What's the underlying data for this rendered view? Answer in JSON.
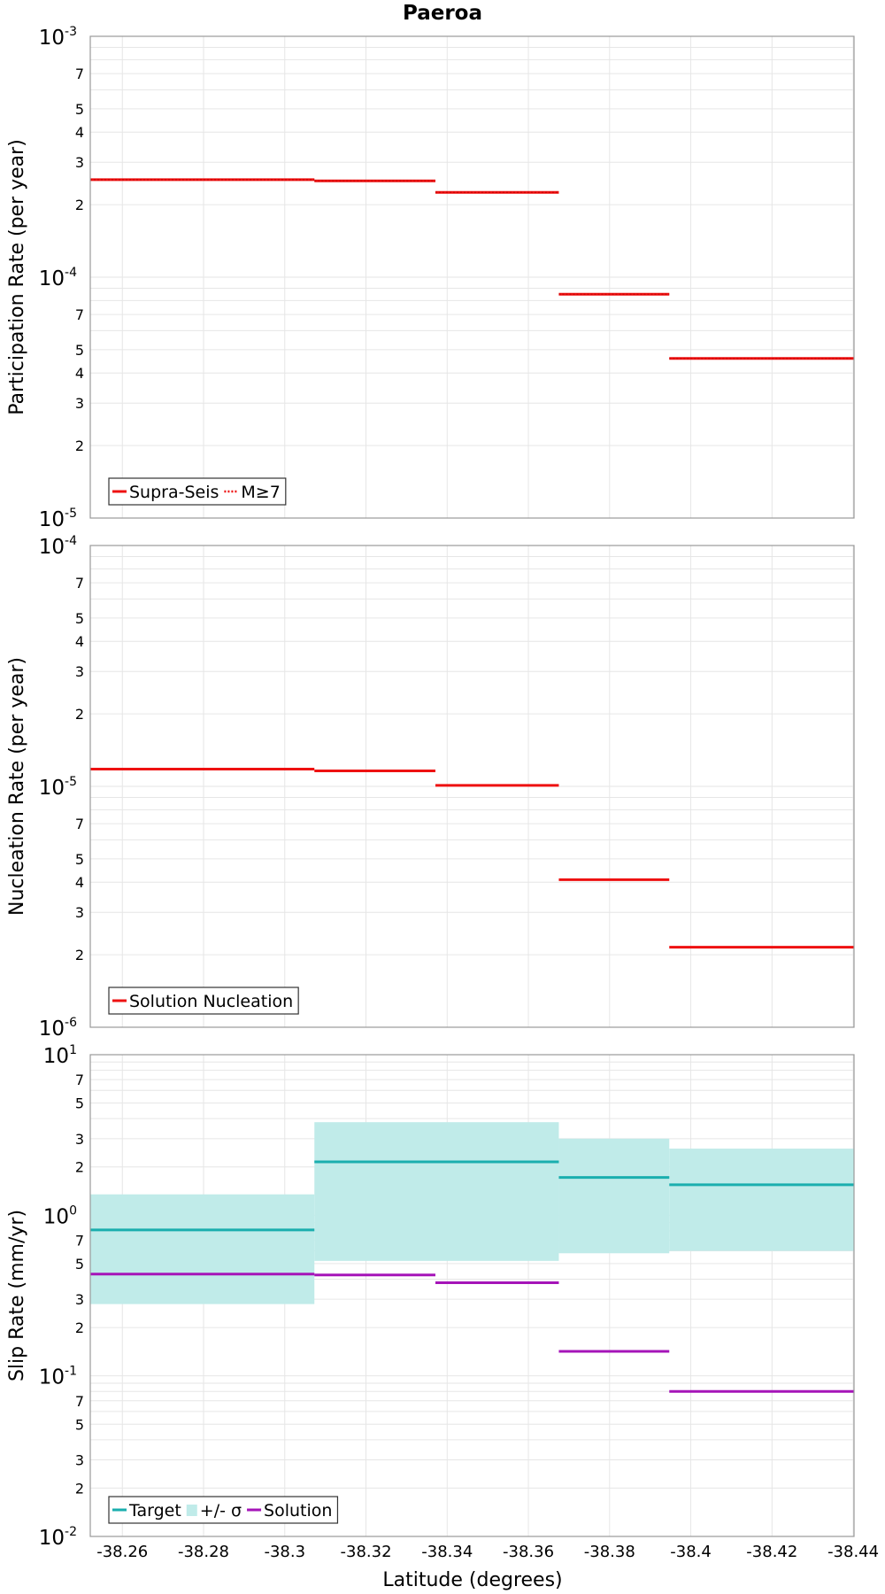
{
  "chart_data": {
    "type": "line",
    "title": "Paeroa",
    "xlabel": "Latitude (degrees)",
    "x_ticks": [
      "-38.26",
      "-38.28",
      "-38.3",
      "-38.32",
      "-38.34",
      "-38.36",
      "-38.38",
      "-38.4",
      "-38.42",
      "-38.44"
    ],
    "x_tick_values": [
      -38.26,
      -38.28,
      -38.3,
      -38.32,
      -38.34,
      -38.36,
      -38.38,
      -38.4,
      -38.42,
      -38.44
    ],
    "xlim": [
      -38.2521,
      -38.4402
    ],
    "x_axis_direction": "decreasing",
    "log_scale_y": true,
    "grid": true,
    "panels": [
      {
        "ylabel": "Participation Rate (per year)",
        "ylim": [
          1e-05,
          0.001
        ],
        "decade_labels": [
          {
            "base": "10",
            "exp": "-5"
          },
          {
            "base": "10",
            "exp": "-4"
          },
          {
            "base": "10",
            "exp": "-3"
          }
        ],
        "minor_labels": [
          "2",
          "3",
          "4",
          "5",
          "7"
        ],
        "legend": {
          "position": "bottom-left",
          "entries": [
            {
              "label": "Supra-Seis",
              "style": "solid",
              "color": "#ee1111"
            },
            {
              "label": "M≥7",
              "style": "dotted",
              "color": "#ee1111"
            }
          ]
        },
        "series": [
          {
            "name": "Supra-Seis",
            "color": "#ee1111",
            "style": "solid",
            "segments": [
              {
                "x": [
                  -38.2521,
                  -38.3073
                ],
                "y": 0.000254
              },
              {
                "x": [
                  -38.3073,
                  -38.3371
                ],
                "y": 0.000251
              },
              {
                "x": [
                  -38.3371,
                  -38.3675
                ],
                "y": 0.000225
              },
              {
                "x": [
                  -38.3675,
                  -38.3947
                ],
                "y": 8.5e-05
              },
              {
                "x": [
                  -38.3947,
                  -38.4402
                ],
                "y": 4.6e-05
              }
            ]
          },
          {
            "name": "M≥7",
            "color": "#ee1111",
            "style": "dotted",
            "segments": [
              {
                "x": [
                  -38.2521,
                  -38.3073
                ],
                "y": 0.000254
              },
              {
                "x": [
                  -38.3073,
                  -38.3371
                ],
                "y": 0.000251
              },
              {
                "x": [
                  -38.3371,
                  -38.3675
                ],
                "y": 0.000225
              },
              {
                "x": [
                  -38.3675,
                  -38.3947
                ],
                "y": 8.5e-05
              },
              {
                "x": [
                  -38.3947,
                  -38.4402
                ],
                "y": 4.6e-05
              }
            ]
          }
        ]
      },
      {
        "ylabel": "Nucleation Rate (per year)",
        "ylim": [
          1e-06,
          0.0001
        ],
        "decade_labels": [
          {
            "base": "10",
            "exp": "-6"
          },
          {
            "base": "10",
            "exp": "-5"
          },
          {
            "base": "10",
            "exp": "-4"
          }
        ],
        "minor_labels": [
          "2",
          "3",
          "4",
          "5",
          "7"
        ],
        "legend": {
          "position": "bottom-left",
          "entries": [
            {
              "label": "Solution Nucleation",
              "style": "solid",
              "color": "#ee1111"
            }
          ]
        },
        "series": [
          {
            "name": "Solution Nucleation",
            "color": "#ee1111",
            "style": "solid",
            "segments": [
              {
                "x": [
                  -38.2521,
                  -38.3073
                ],
                "y": 1.18e-05
              },
              {
                "x": [
                  -38.3073,
                  -38.3371
                ],
                "y": 1.16e-05
              },
              {
                "x": [
                  -38.3371,
                  -38.3675
                ],
                "y": 1.01e-05
              },
              {
                "x": [
                  -38.3675,
                  -38.3947
                ],
                "y": 4.1e-06
              },
              {
                "x": [
                  -38.3947,
                  -38.4402
                ],
                "y": 2.15e-06
              }
            ]
          }
        ]
      },
      {
        "ylabel": "Slip Rate (mm/yr)",
        "ylim": [
          0.01,
          10
        ],
        "decade_labels": [
          {
            "base": "10",
            "exp": "-2"
          },
          {
            "base": "10",
            "exp": "-1"
          },
          {
            "base": "10",
            "exp": "0"
          },
          {
            "base": "10",
            "exp": "1"
          }
        ],
        "minor_labels": [
          "2",
          "3",
          "5",
          "7"
        ],
        "legend": {
          "position": "bottom-left",
          "entries": [
            {
              "label": "Target",
              "style": "solid",
              "color": "#1aaeae"
            },
            {
              "label": "+/- σ",
              "style": "box",
              "color": "#c0ebe9"
            },
            {
              "label": "Solution",
              "style": "solid",
              "color": "#a514b8"
            }
          ]
        },
        "bands": [
          {
            "name": "+/- σ",
            "color": "#c0ebe9",
            "segments": [
              {
                "x": [
                  -38.2521,
                  -38.3073
                ],
                "y": [
                  0.28,
                  1.35
                ]
              },
              {
                "x": [
                  -38.3073,
                  -38.3675
                ],
                "y": [
                  0.52,
                  3.8
                ]
              },
              {
                "x": [
                  -38.3675,
                  -38.3947
                ],
                "y": [
                  0.58,
                  3.0
                ]
              },
              {
                "x": [
                  -38.3947,
                  -38.4402
                ],
                "y": [
                  0.6,
                  2.6
                ]
              }
            ]
          }
        ],
        "series": [
          {
            "name": "Target",
            "color": "#1aaeae",
            "style": "solid",
            "segments": [
              {
                "x": [
                  -38.2521,
                  -38.3073
                ],
                "y": 0.81
              },
              {
                "x": [
                  -38.3073,
                  -38.3675
                ],
                "y": 2.15
              },
              {
                "x": [
                  -38.3675,
                  -38.3947
                ],
                "y": 1.72
              },
              {
                "x": [
                  -38.3947,
                  -38.4402
                ],
                "y": 1.55
              }
            ]
          },
          {
            "name": "Solution",
            "color": "#a514b8",
            "style": "solid",
            "segments": [
              {
                "x": [
                  -38.2521,
                  -38.3073
                ],
                "y": 0.43
              },
              {
                "x": [
                  -38.3073,
                  -38.3371
                ],
                "y": 0.425
              },
              {
                "x": [
                  -38.3371,
                  -38.3675
                ],
                "y": 0.38
              },
              {
                "x": [
                  -38.3675,
                  -38.3947
                ],
                "y": 0.142
              },
              {
                "x": [
                  -38.3947,
                  -38.4402
                ],
                "y": 0.08
              }
            ]
          }
        ]
      }
    ]
  }
}
